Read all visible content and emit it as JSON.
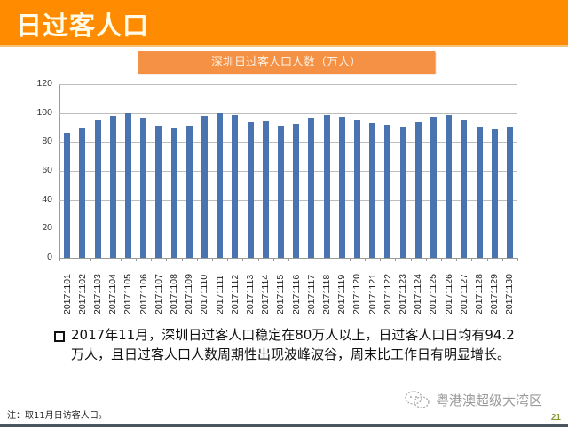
{
  "header": {
    "title": "日过客人口"
  },
  "chart_data": {
    "type": "bar",
    "title": "深圳日过客人口人数（万人）",
    "xlabel": "",
    "ylabel": "",
    "ylim": [
      0,
      120
    ],
    "yticks": [
      0,
      20,
      40,
      60,
      80,
      100,
      120
    ],
    "grid": true,
    "legend": null,
    "bar_color": "#4a74b0",
    "categories": [
      "20171101",
      "20171102",
      "20171103",
      "20171104",
      "20171105",
      "20171106",
      "20171107",
      "20171108",
      "20171109",
      "20171110",
      "20171111",
      "20171112",
      "20171113",
      "20171114",
      "20171115",
      "20171116",
      "20171117",
      "20171118",
      "20171119",
      "20171120",
      "20171121",
      "20171122",
      "20171123",
      "20171124",
      "20171125",
      "20171126",
      "20171127",
      "20171128",
      "20171129",
      "20171130"
    ],
    "values": [
      86.3,
      89.4,
      95.0,
      97.7,
      100.4,
      96.8,
      91.2,
      90.0,
      91.2,
      98.0,
      99.8,
      98.6,
      93.4,
      94.0,
      91.0,
      92.4,
      97.0,
      98.6,
      97.4,
      95.5,
      93.0,
      91.9,
      90.6,
      93.9,
      97.4,
      98.8,
      95.0,
      90.6,
      88.8,
      90.6
    ]
  },
  "summary": {
    "text": "2017年11月，深圳日过客人口稳定在80万人以上，日过客人口日均有94.2万人，且日过客人口人数周期性出现波峰波谷，周末比工作日有明显增长。"
  },
  "footer": {
    "note": "注：取11月日访客人口。",
    "watermark": "粤港澳超级大湾区",
    "watermark_icon": "wechat-icon",
    "page_number": "21"
  },
  "colors": {
    "header_bg": "#ff8c00",
    "title_box_bg": "#f59145",
    "bar": "#4a74b0",
    "page_number": "#8a9a3a"
  }
}
